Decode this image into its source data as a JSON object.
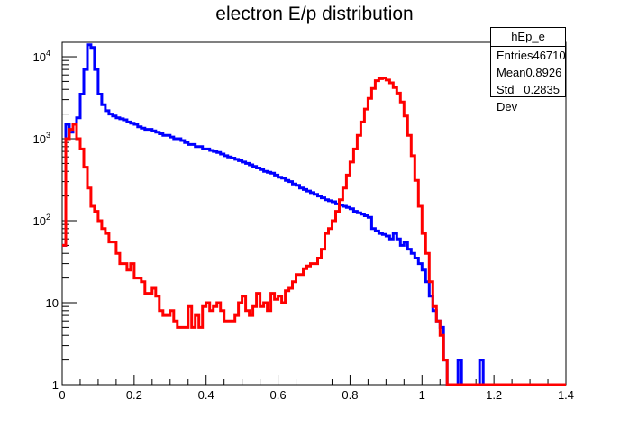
{
  "chart_data": {
    "type": "line",
    "title": "electron E/p distribution",
    "xlabel": "",
    "ylabel": "",
    "xlim": [
      0,
      1.4
    ],
    "ylim": [
      1,
      15000
    ],
    "yscale": "log",
    "grid": false,
    "x_ticks": [
      "0",
      "0.2",
      "0.4",
      "0.6",
      "0.8",
      "1",
      "1.2",
      "1.4"
    ],
    "y_ticks": [
      {
        "value": 1,
        "label": "1"
      },
      {
        "value": 10,
        "label": "10"
      },
      {
        "value": 100,
        "label": "10",
        "exp": "2"
      },
      {
        "value": 1000,
        "label": "10",
        "exp": "3"
      },
      {
        "value": 10000,
        "label": "10",
        "exp": "4"
      }
    ],
    "bin_width": 0.01,
    "series": [
      {
        "color": "#0000ff",
        "x_start": 0.0,
        "values": [
          50,
          1500,
          1200,
          1500,
          1800,
          3500,
          7000,
          14000,
          13000,
          7000,
          3500,
          2600,
          2200,
          2000,
          1900,
          1800,
          1750,
          1700,
          1600,
          1550,
          1500,
          1400,
          1350,
          1300,
          1300,
          1250,
          1200,
          1150,
          1100,
          1100,
          1050,
          1000,
          1000,
          950,
          900,
          850,
          850,
          800,
          800,
          750,
          750,
          720,
          700,
          680,
          650,
          620,
          600,
          580,
          560,
          540,
          520,
          500,
          480,
          460,
          440,
          420,
          400,
          390,
          380,
          360,
          340,
          330,
          310,
          300,
          280,
          270,
          250,
          240,
          230,
          220,
          210,
          200,
          190,
          180,
          175,
          170,
          160,
          155,
          150,
          145,
          140,
          130,
          125,
          120,
          115,
          110,
          80,
          75,
          70,
          68,
          65,
          60,
          70,
          60,
          50,
          55,
          45,
          40,
          35,
          30,
          25,
          18,
          12,
          8,
          6,
          5,
          2,
          1,
          1,
          1,
          2,
          1,
          1,
          1,
          1,
          1,
          2,
          1,
          1,
          1,
          1,
          1,
          1,
          1,
          1,
          1,
          1,
          1,
          1,
          1,
          1,
          1,
          1,
          1,
          1,
          1,
          1,
          1,
          1,
          1
        ]
      },
      {
        "color": "#ff0000",
        "x_start": 0.0,
        "values": [
          50,
          1000,
          1300,
          1500,
          1000,
          750,
          450,
          250,
          150,
          130,
          100,
          80,
          70,
          55,
          55,
          40,
          30,
          30,
          25,
          30,
          20,
          20,
          18,
          13,
          13,
          15,
          12,
          8,
          7,
          7,
          8,
          6,
          5,
          5,
          5,
          9,
          5,
          7,
          5,
          9,
          10,
          8,
          9,
          10,
          8,
          6,
          6,
          6,
          7,
          10,
          12,
          8,
          7,
          9,
          13,
          9,
          10,
          8,
          13,
          11,
          12,
          10,
          14,
          15,
          18,
          22,
          22,
          26,
          28,
          30,
          30,
          35,
          45,
          70,
          80,
          100,
          130,
          180,
          250,
          360,
          520,
          750,
          1100,
          1600,
          2300,
          3100,
          4100,
          5100,
          5400,
          5500,
          5200,
          4800,
          4200,
          3600,
          2800,
          1900,
          1100,
          620,
          310,
          150,
          70,
          40,
          18,
          9,
          6,
          4,
          2,
          1,
          1,
          1,
          1,
          1,
          1,
          1,
          1,
          1,
          1,
          1,
          1,
          1,
          1,
          1,
          1,
          1,
          1,
          1,
          1,
          1,
          1,
          1,
          1,
          1,
          1,
          1,
          1,
          1,
          1,
          1,
          1,
          1
        ]
      }
    ]
  },
  "statbox": {
    "name": "hEp_e",
    "entries_label": "Entries",
    "entries_value": "46710",
    "mean_label": "Mean",
    "mean_value": "0.8926",
    "stddev_label": "Std Dev",
    "stddev_value": "0.2835"
  }
}
